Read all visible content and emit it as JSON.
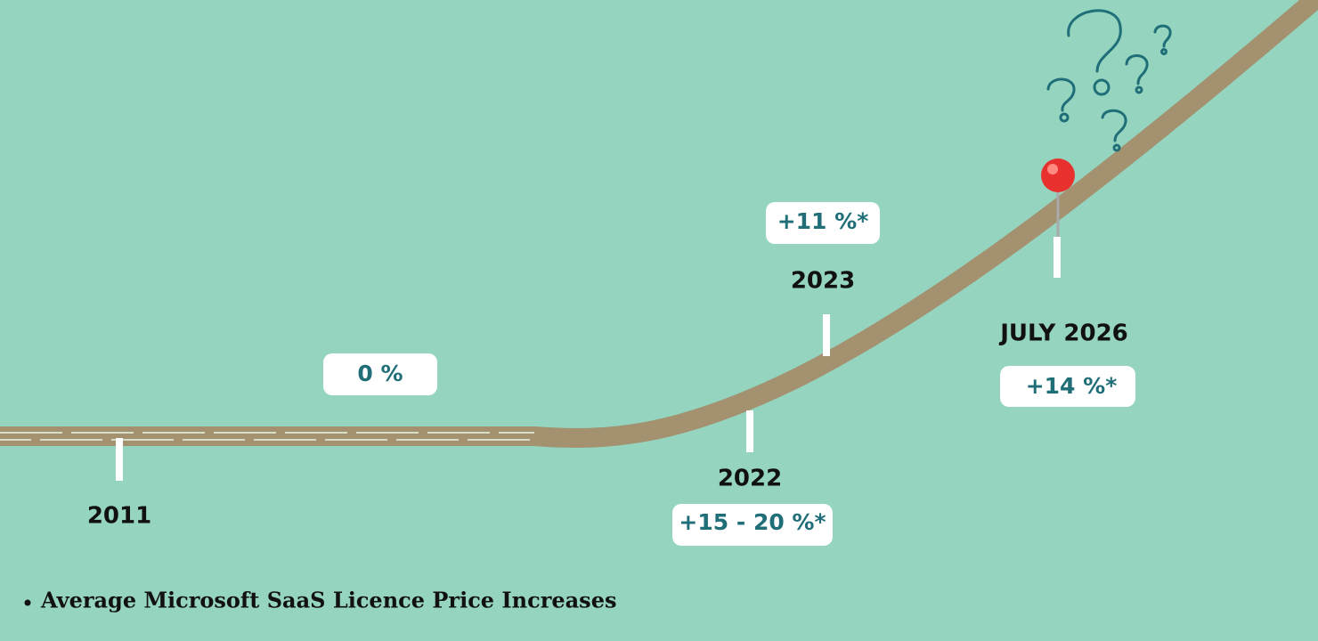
{
  "timeline": {
    "markers": [
      {
        "year": "2011"
      },
      {
        "year": "2022",
        "change": "+15 - 20 %*"
      },
      {
        "year": "2023",
        "change": "+11 %*"
      },
      {
        "year": "JULY 2026",
        "change": "+14 %*"
      }
    ],
    "flat_period": {
      "change": "0 %"
    }
  },
  "legend": {
    "items": [
      "Average Microsoft SaaS Licence Price Increases"
    ]
  }
}
